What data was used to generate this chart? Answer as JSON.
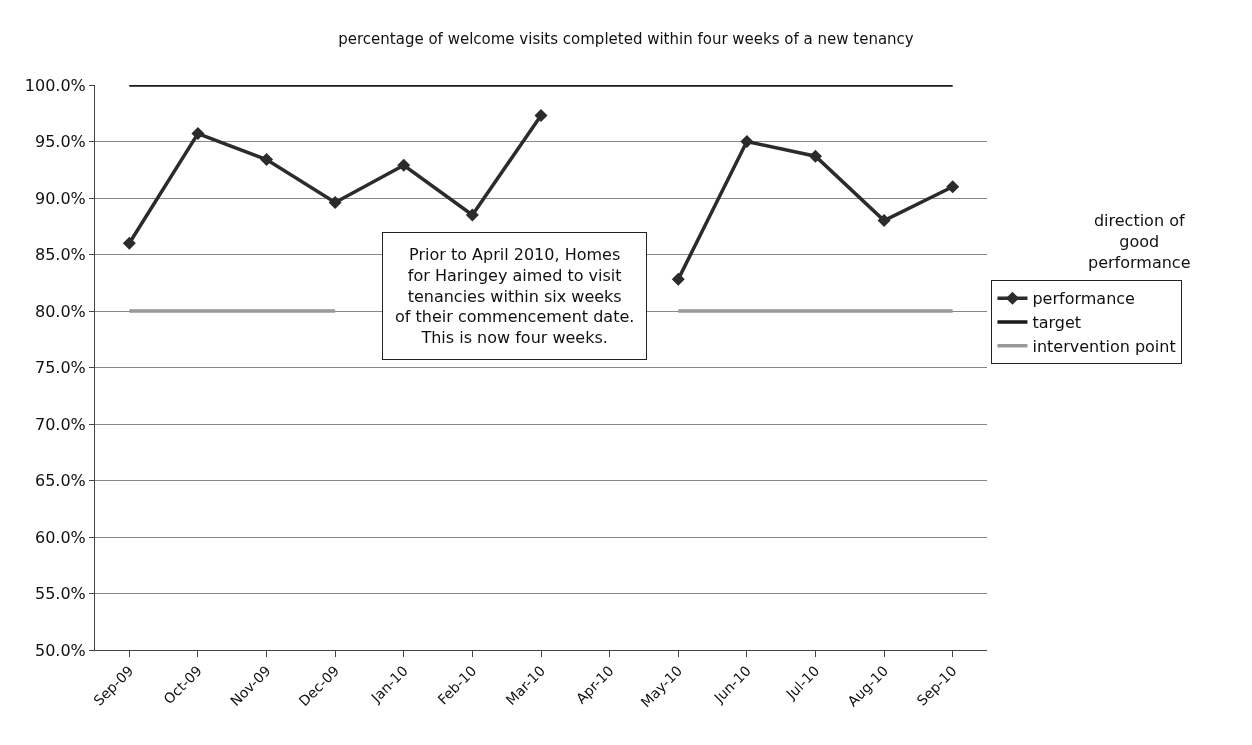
{
  "chart_data": {
    "type": "line",
    "title": "percentage of welcome visits completed within four weeks of a new tenancy",
    "categories": [
      "Sep-09",
      "Oct-09",
      "Nov-09",
      "Dec-09",
      "Jan-10",
      "Feb-10",
      "Mar-10",
      "Apr-10",
      "May-10",
      "Jun-10",
      "Jul-10",
      "Aug-10",
      "Sep-10"
    ],
    "series": [
      {
        "name": "performance",
        "color": "#2b2b2b",
        "marker": "diamond",
        "values": [
          86.0,
          95.7,
          93.4,
          89.6,
          92.9,
          88.5,
          97.3,
          null,
          82.8,
          95.0,
          93.7,
          88.0,
          91.0
        ]
      },
      {
        "name": "target",
        "color": "#1a1a1a",
        "marker": "none",
        "values": [
          100,
          100,
          100,
          100,
          100,
          100,
          100,
          100,
          100,
          100,
          100,
          100,
          100
        ]
      },
      {
        "name": "intervention point",
        "color": "#999999",
        "marker": "none",
        "values": [
          80,
          80,
          80,
          80,
          null,
          null,
          null,
          null,
          80,
          80,
          80,
          80,
          80
        ]
      }
    ],
    "ylim": [
      50,
      100
    ],
    "yticks": [
      {
        "value": 50,
        "label": "50.0%"
      },
      {
        "value": 55,
        "label": "55.0%"
      },
      {
        "value": 60,
        "label": "60.0%"
      },
      {
        "value": 65,
        "label": "65.0%"
      },
      {
        "value": 70,
        "label": "70.0%"
      },
      {
        "value": 75,
        "label": "75.0%"
      },
      {
        "value": 80,
        "label": "80.0%"
      },
      {
        "value": 85,
        "label": "85.0%"
      },
      {
        "value": 90,
        "label": "90.0%"
      },
      {
        "value": 95,
        "label": "95.0%"
      },
      {
        "value": 100,
        "label": "100.0%"
      }
    ],
    "grid": "y",
    "legend": "right",
    "line_style": "solid",
    "annotations": [
      "Prior to April 2010, Homes for Haringey aimed to visit tenancies within six weeks of their commencement date. This is now four weeks.",
      "direction of good performance"
    ]
  }
}
